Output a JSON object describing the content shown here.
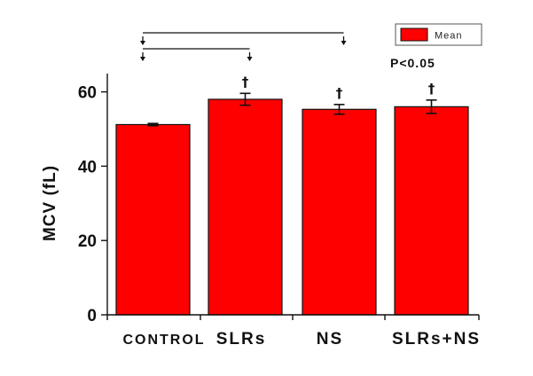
{
  "chart_data": {
    "type": "bar",
    "categories": [
      "CONTROL",
      "SLRs",
      "NS",
      "SLRs+NS"
    ],
    "series": [
      {
        "name": "Mean",
        "values": [
          51.2,
          58.0,
          55.3,
          56.0
        ],
        "errors": [
          0.3,
          1.6,
          1.3,
          1.8
        ],
        "color": "#ff0000"
      }
    ],
    "significance_markers": [
      "",
      "†",
      "†",
      "†"
    ],
    "annotation": "P<0.05",
    "comparison_brackets": [
      {
        "from": "CONTROL",
        "to": "SLRs"
      },
      {
        "from": "CONTROL",
        "to": "NS"
      }
    ],
    "xlabel": "",
    "ylabel": "MCV (fL)",
    "ylim": [
      0,
      65
    ],
    "yticks": [
      0,
      20,
      40,
      60
    ],
    "grid": false,
    "legend_position": "top-right",
    "colors": {
      "bar_fill": "#ff0000",
      "bar_stroke": "#111111",
      "axis": "#111111"
    }
  }
}
